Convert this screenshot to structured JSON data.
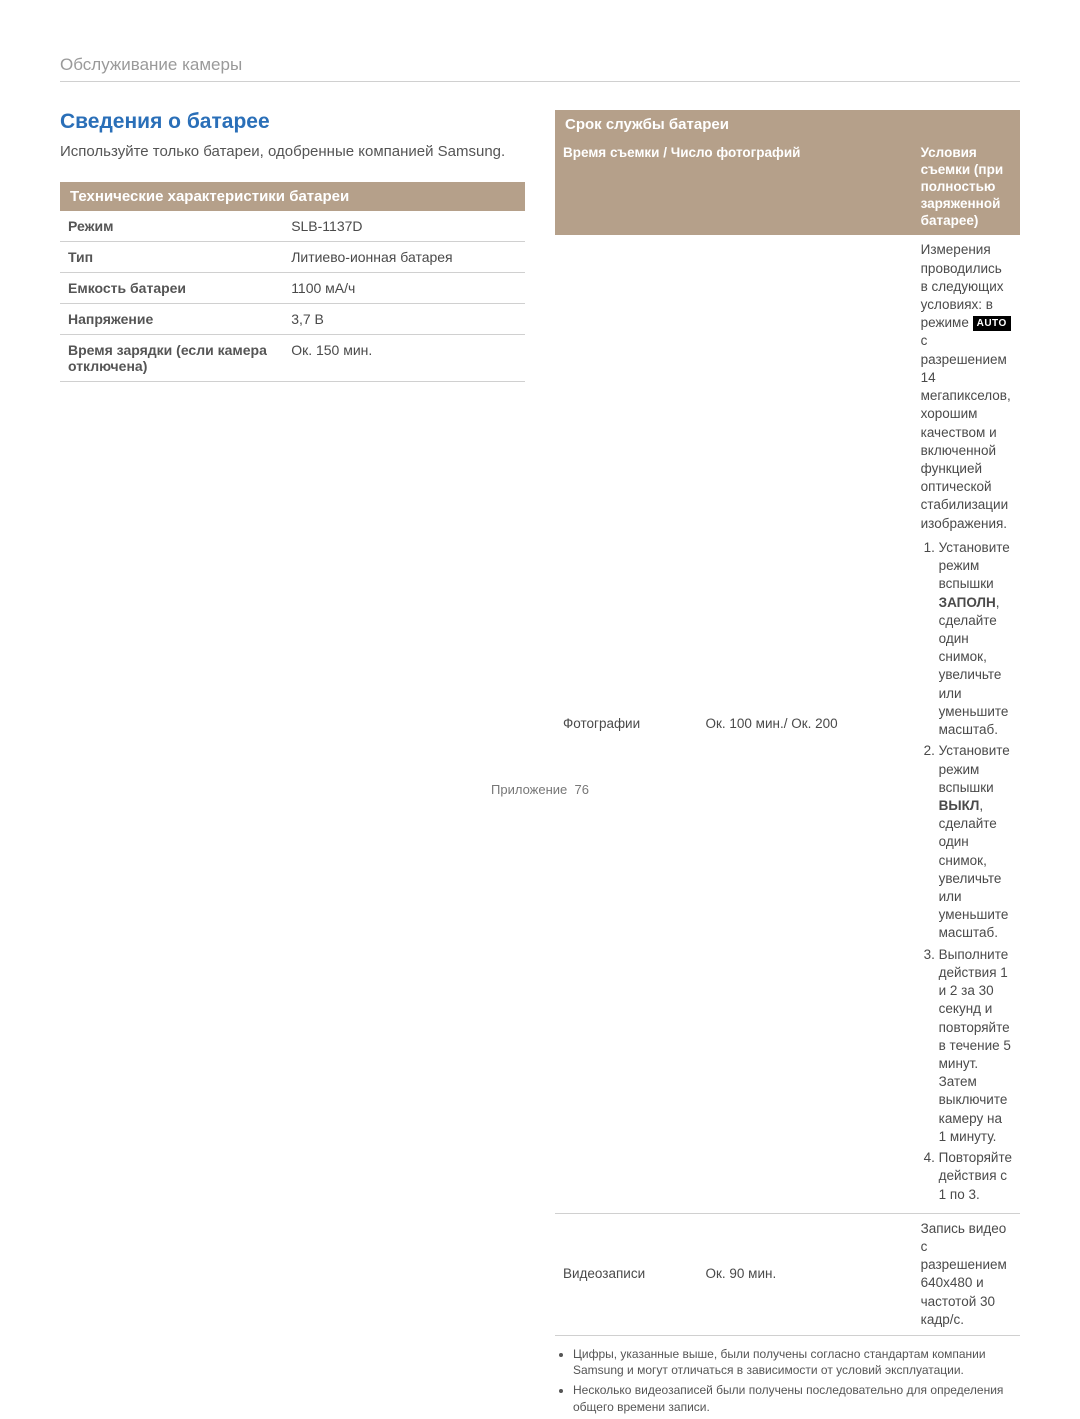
{
  "header": "Обслуживание камеры",
  "title": "Сведения о батарее",
  "intro": "Используйте только батареи, одобренные компанией Samsung.",
  "spec_header": "Технические характеристики батареи",
  "spec_rows": [
    {
      "label": "Режим",
      "value": "SLB-1137D"
    },
    {
      "label": "Тип",
      "value": "Литиево-ионная батарея"
    },
    {
      "label": "Емкость батареи",
      "value": "1100 мА/ч"
    },
    {
      "label": "Напряжение",
      "value": "3,7 В"
    },
    {
      "label": "Время зарядки (если камера отключена)",
      "value": "Ок. 150 мин."
    }
  ],
  "life_header": "Срок службы батареи",
  "life_table": {
    "col1": "Время съемки / Число фотографий",
    "col2": "Условия съемки (при полностью заряженной батарее)",
    "intro_cond_pre": "Измерения проводились в следующих условиях: в режиме ",
    "auto_badge": "AUTO",
    "intro_cond_post": " с разрешением 14 мегапикселов, хорошим качеством и включенной функцией оптической стабилизации изображения.",
    "photo_label": "Фотографии",
    "photo_value": "Ок. 100 мин./ Ок. 200",
    "steps": [
      "Установите режим вспышки ",
      ", сделайте один снимок, увеличьте или уменьшите масштаб.",
      "Установите режим вспышки ",
      ", сделайте один снимок, увеличьте или уменьшите масштаб.",
      "Выполните действия 1 и 2 за 30 секунд и повторяйте в течение 5 минут. Затем выключите камеру на 1 минуту.",
      "Повторяйте действия с 1 по 3."
    ],
    "kw_fill": "ЗАПОЛН",
    "kw_off": "ВЫКЛ",
    "video_label": "Видеозаписи",
    "video_value": "Ок. 90 мин.",
    "video_cond": "Запись видео с разрешением 640x480 и частотой 30 кадр/с."
  },
  "notes": [
    "Цифры, указанные выше, были получены согласно стандартам компании Samsung и могут отличаться в зависимости от условий эксплуатации.",
    "Несколько видеозаписей были получены последовательно для определения общего времени записи."
  ],
  "footer_label": "Приложение",
  "footer_page": "76",
  "colors": {
    "title": "#2a6fb8",
    "subheader_bg": "#b5a08a",
    "subheader_fg": "#ffffff",
    "border": "#d0d0d0"
  }
}
